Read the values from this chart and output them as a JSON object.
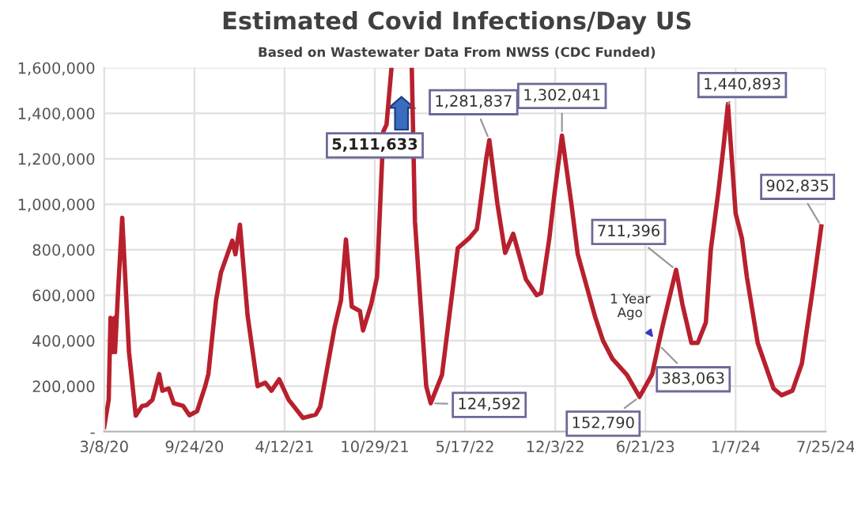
{
  "chart_data": {
    "type": "line",
    "title": "Estimated Covid Infections/Day US",
    "subtitle": "Based on Wastewater Data From NWSS (CDC Funded)",
    "x": [
      "2020-03-08",
      "2020-03-18",
      "2020-03-22",
      "2020-03-27",
      "2020-03-31",
      "2020-04-01",
      "2020-04-08",
      "2020-04-17",
      "2020-05-02",
      "2020-05-17",
      "2020-05-31",
      "2020-06-10",
      "2020-06-23",
      "2020-07-08",
      "2020-07-15",
      "2020-07-29",
      "2020-08-09",
      "2020-08-30",
      "2020-09-13",
      "2020-09-30",
      "2020-10-18",
      "2020-10-25",
      "2020-11-11",
      "2020-11-22",
      "2020-12-17",
      "2020-12-24",
      "2021-01-03",
      "2021-01-20",
      "2021-02-11",
      "2021-02-28",
      "2021-03-14",
      "2021-03-31",
      "2021-04-21",
      "2021-05-23",
      "2021-06-20",
      "2021-06-30",
      "2021-08-01",
      "2021-08-15",
      "2021-08-26",
      "2021-09-08",
      "2021-09-26",
      "2021-10-03",
      "2021-10-21",
      "2021-11-03",
      "2021-11-17",
      "2021-11-24",
      "2021-12-05",
      "2021-12-26",
      "2022-01-19",
      "2022-01-26",
      "2022-02-20",
      "2022-03-02",
      "2022-03-27",
      "2022-05-01",
      "2022-05-26",
      "2022-06-12",
      "2022-06-16",
      "2022-07-03",
      "2022-07-10",
      "2022-07-28",
      "2022-08-14",
      "2022-09-01",
      "2022-09-29",
      "2022-10-23",
      "2022-11-02",
      "2022-11-20",
      "2022-12-01",
      "2022-12-18",
      "2023-01-08",
      "2023-01-22",
      "2023-03-01",
      "2023-03-19",
      "2023-04-09",
      "2023-05-11",
      "2023-06-08",
      "2023-07-06",
      "2023-07-20",
      "2023-07-31",
      "2023-08-28",
      "2023-09-11",
      "2023-10-01",
      "2023-10-15",
      "2023-11-02",
      "2023-11-13",
      "2023-11-30",
      "2023-12-11",
      "2023-12-21",
      "2024-01-07",
      "2024-01-21",
      "2024-02-01",
      "2024-02-25",
      "2024-03-31",
      "2024-04-18",
      "2024-05-12",
      "2024-06-02",
      "2024-06-27",
      "2024-07-15"
    ],
    "series": [
      {
        "color": "#b8202e",
        "values": [
          20000,
          140000,
          500000,
          350000,
          500000,
          350000,
          626000,
          940000,
          350000,
          70000,
          113000,
          116000,
          140000,
          253000,
          180000,
          190000,
          125000,
          113000,
          72000,
          90000,
          200000,
          253000,
          577000,
          700000,
          840000,
          780000,
          910000,
          510000,
          200000,
          215000,
          180000,
          230000,
          140000,
          60000,
          75000,
          110000,
          460000,
          577000,
          845000,
          550000,
          530000,
          445000,
          560000,
          680000,
          1320000,
          1350000,
          1600000,
          null,
          1600000,
          925000,
          200000,
          124592,
          250000,
          807000,
          850000,
          890000,
          940000,
          1200000,
          1281837,
          1000000,
          786000,
          870000,
          670000,
          600000,
          610000,
          850000,
          1040000,
          1302041,
          1000000,
          780000,
          508000,
          400000,
          320000,
          250000,
          152790,
          253000,
          383063,
          480000,
          711396,
          560000,
          390000,
          390000,
          480000,
          800000,
          1060000,
          1250000,
          1440893,
          960000,
          850000,
          680000,
          390000,
          190000,
          160000,
          180000,
          300000,
          640000,
          902835
        ]
      }
    ],
    "xlim": [
      "2020-03-08",
      "2024-07-25"
    ],
    "xticks": [
      {
        "value": "2020-03-08",
        "label": "3/8/20"
      },
      {
        "value": "2020-09-24",
        "label": "9/24/20"
      },
      {
        "value": "2021-04-12",
        "label": "4/12/21"
      },
      {
        "value": "2021-10-29",
        "label": "10/29/21"
      },
      {
        "value": "2022-05-17",
        "label": "5/17/22"
      },
      {
        "value": "2022-12-03",
        "label": "12/3/22"
      },
      {
        "value": "2023-06-21",
        "label": "6/21/23"
      },
      {
        "value": "2024-01-07",
        "label": "1/7/24"
      },
      {
        "value": "2024-07-25",
        "label": "7/25/24"
      }
    ],
    "ylim": [
      0,
      1600000
    ],
    "yticks": [
      {
        "value": 0,
        "label": "-"
      },
      {
        "value": 200000,
        "label": "200,000"
      },
      {
        "value": 400000,
        "label": "400,000"
      },
      {
        "value": 600000,
        "label": "600,000"
      },
      {
        "value": 800000,
        "label": "800,000"
      },
      {
        "value": 1000000,
        "label": "1,000,000"
      },
      {
        "value": 1200000,
        "label": "1,200,000"
      },
      {
        "value": 1400000,
        "label": "1,400,000"
      },
      {
        "value": 1600000,
        "label": "1,600,000"
      }
    ],
    "grid": true,
    "marker": "none",
    "line_style": "solid",
    "annotations": [
      "5,111,633",
      {
        "text": "1,281,837",
        "x": "2022-07-10",
        "y": 1281837
      },
      {
        "text": "1,302,041",
        "x": "2022-12-18",
        "y": 1302041
      },
      {
        "text": "1,440,893",
        "x": "2023-12-21",
        "y": 1440893
      },
      {
        "text": "902,835",
        "x": "2024-07-15",
        "y": 902835
      },
      {
        "text": "711,396",
        "x": "2023-08-28",
        "y": 711396
      },
      {
        "text": "124,592",
        "x": "2022-03-02",
        "y": 124592
      },
      {
        "text": "152,790",
        "x": "2023-06-08",
        "y": 152790
      },
      {
        "text": "383,063",
        "x": "2023-07-20",
        "y": 383063
      },
      {
        "text": "1 Year Ago",
        "x": "2023-07-20",
        "y": 383063
      }
    ]
  }
}
